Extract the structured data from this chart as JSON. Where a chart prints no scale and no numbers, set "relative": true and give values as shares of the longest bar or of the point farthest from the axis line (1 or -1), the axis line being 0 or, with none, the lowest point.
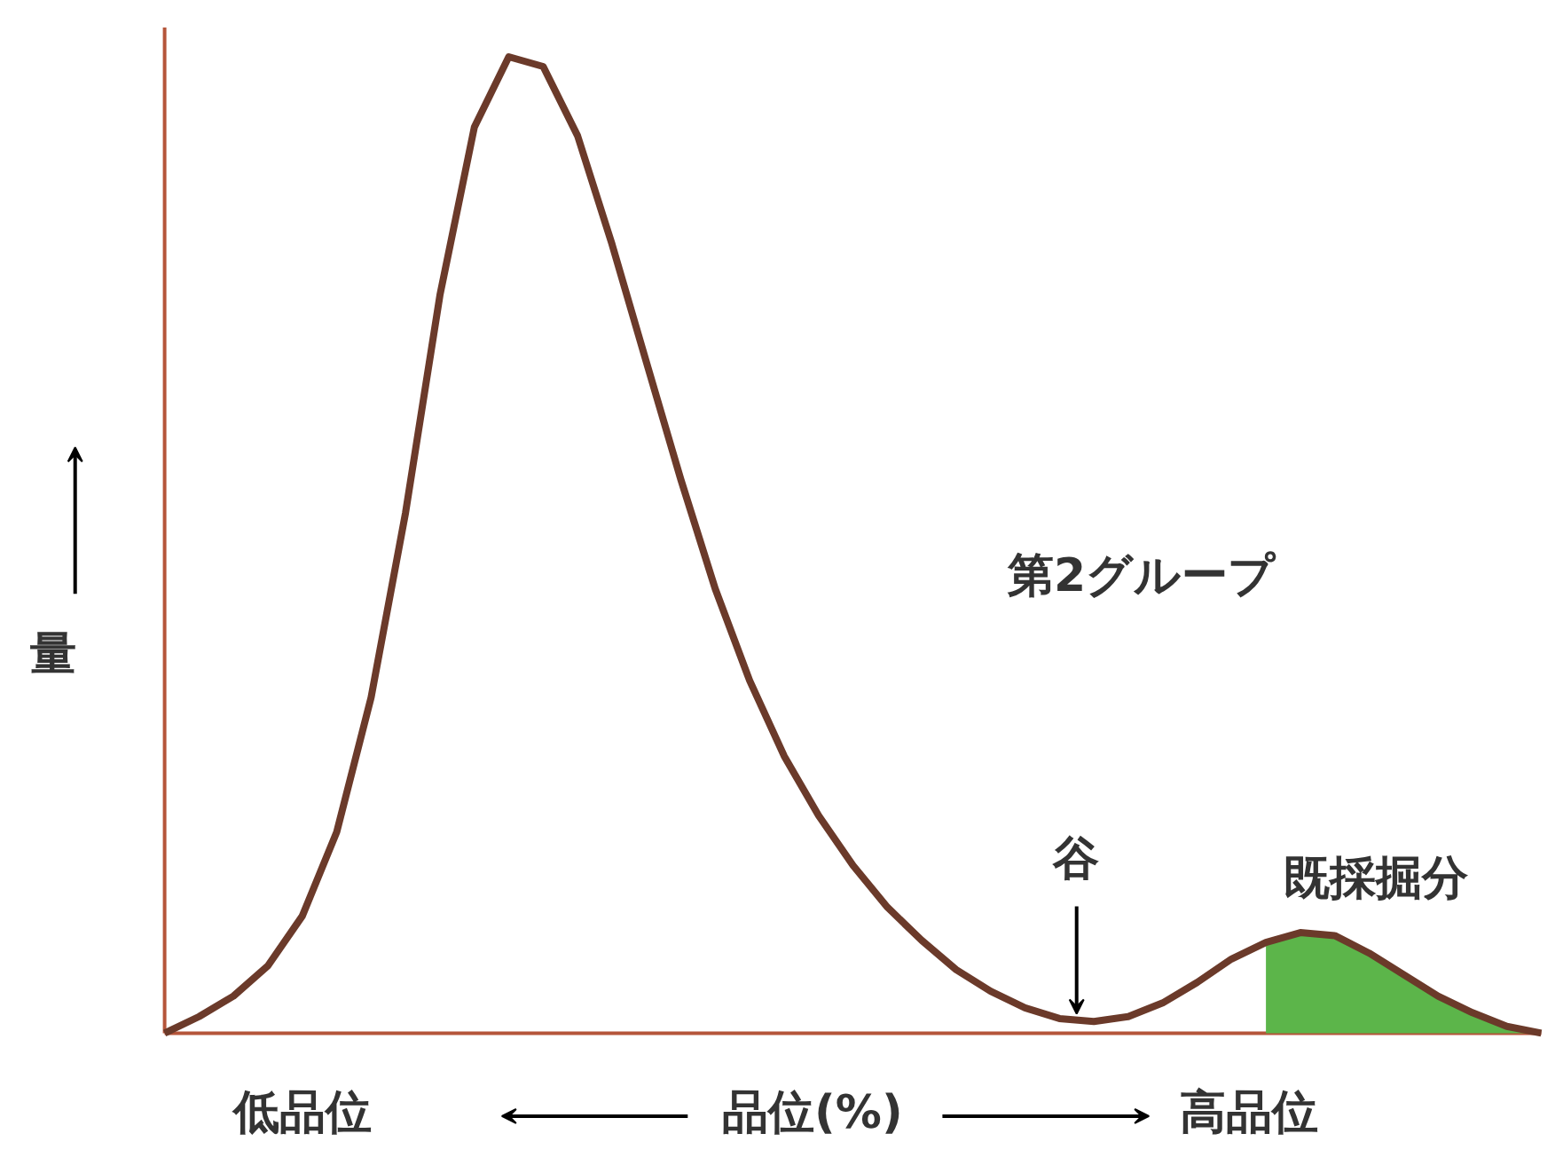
{
  "chart_data": {
    "type": "line",
    "relative": true,
    "xlabel": "品位(%)",
    "ylabel": "量",
    "categories": [
      null,
      null,
      null,
      null,
      null,
      null,
      null,
      null,
      null,
      null,
      null,
      null,
      null,
      null,
      null,
      null,
      null,
      null,
      null,
      null,
      null,
      null,
      null,
      null,
      null,
      null,
      null,
      null,
      null,
      null,
      null,
      null,
      null,
      null,
      null,
      null,
      null,
      null,
      null,
      null,
      null
    ],
    "series": [
      {
        "type": "area",
        "color": "#5cb54a",
        "values": [
          null,
          null,
          null,
          null,
          null,
          null,
          null,
          null,
          null,
          null,
          null,
          null,
          null,
          null,
          null,
          null,
          null,
          null,
          null,
          null,
          null,
          null,
          null,
          null,
          null,
          null,
          null,
          null,
          null,
          null,
          null,
          null,
          0.093,
          0.103,
          0.1,
          0.082,
          0.06,
          0.038,
          0.021,
          0.007,
          0
        ]
      },
      {
        "color": "#6b3a2a",
        "values": [
          0,
          0.017,
          0.038,
          0.069,
          0.12,
          0.206,
          0.344,
          0.533,
          0.756,
          0.928,
          1,
          0.99,
          0.919,
          0.808,
          0.687,
          0.567,
          0.455,
          0.361,
          0.284,
          0.223,
          0.172,
          0.129,
          0.095,
          0.065,
          0.043,
          0.026,
          0.015,
          0.012,
          0.017,
          0.031,
          0.052,
          0.076,
          0.093,
          0.103,
          0.1,
          0.082,
          0.06,
          0.038,
          0.021,
          0.007,
          0
        ]
      }
    ],
    "annotations": [
      "第2グループ",
      "谷",
      "既採掘分",
      "低品位",
      "高品位"
    ]
  }
}
